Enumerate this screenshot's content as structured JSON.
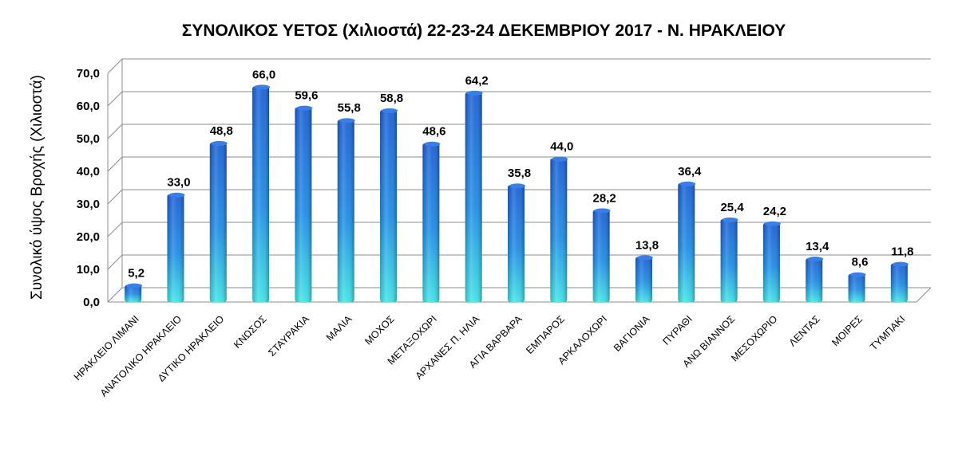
{
  "chart_data": {
    "type": "bar",
    "title": "ΣΥΝΟΛΙΚΟΣ ΥΕΤΟΣ (Χιλιοστά) 22-23-24 ΔΕΚΕΜΒΡΙΟΥ 2017 -  Ν. ΗΡΑΚΛΕΙΟΥ",
    "xlabel": "",
    "ylabel": "Συνολικό ύψος Βροχής (Χιλιοστά)",
    "ylim": [
      0,
      70
    ],
    "yticks": [
      "0,0",
      "10,0",
      "20,0",
      "30,0",
      "40,0",
      "50,0",
      "60,0",
      "70,0"
    ],
    "grid": true,
    "legend": "none",
    "categories": [
      "ΗΡΑΚΛΕΙΟ ΛΙΜΑΝΙ",
      "ΑΝΑΤΟΛΙΚΟ ΗΡΑΚΛΕΙΟ",
      "ΔΥΤΙΚΟ ΗΡΑΚΛΕΙΟ",
      "ΚΝΩΣΟΣ",
      "ΣΤΑΥΡΑΚΙΑ",
      "ΜΑΛΙΑ",
      "ΜΟΧΟΣ",
      "ΜΕΤΑΞΟΧΩΡΙ",
      "ΑΡΧΑΝΕΣ Π. ΗΛΙΑ",
      "ΑΓΙΑ ΒΑΡΒΑΡΑ",
      "ΕΜΠΑΡΟΣ",
      "ΑΡΚΑΛΟΧΩΡΙ",
      "ΒΑΓΙΟΝΙΑ",
      "ΠΥΡΑΘΙ",
      "ΑΝΩ ΒΙΑΝΝΟΣ",
      "ΜΕΣΟΧΩΡΙΟ",
      "ΛΕΝΤΑΣ",
      "ΜΟΙΡΕΣ",
      "ΤΥΜΠΑΚΙ"
    ],
    "values": [
      5.2,
      33.0,
      48.8,
      66.0,
      59.6,
      55.8,
      58.8,
      48.6,
      64.2,
      35.8,
      44.0,
      28.2,
      13.8,
      36.4,
      25.4,
      24.2,
      13.4,
      8.6,
      11.8
    ],
    "data_labels": [
      "5,2",
      "33,0",
      "48,8",
      "66,0",
      "59,6",
      "55,8",
      "58,8",
      "48,6",
      "64,2",
      "35,8",
      "44,0",
      "28,2",
      "13,8",
      "36,4",
      "25,4",
      "24,2",
      "13,4",
      "8,6",
      "11,8"
    ],
    "colors": {
      "bar_top": "#1a5fd6",
      "bar_bottom": "#3fe3e6",
      "grid": "#8c8c8c"
    }
  }
}
